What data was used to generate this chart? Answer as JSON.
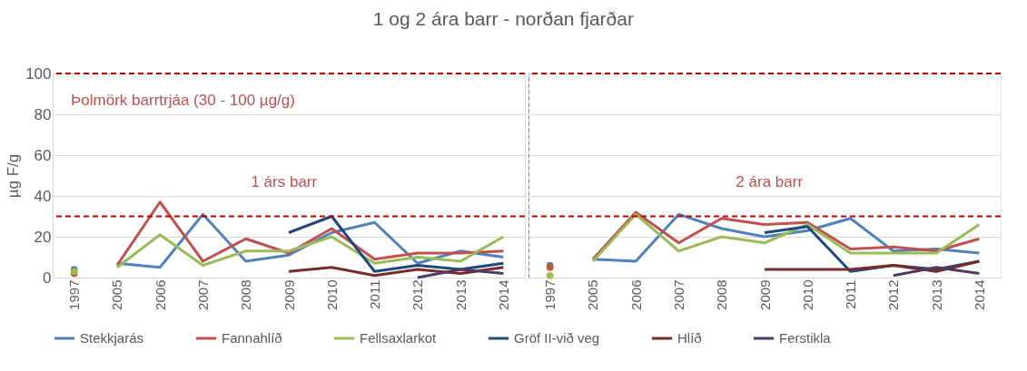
{
  "chart_data": [
    {
      "type": "line",
      "title": "1 og 2 ára barr - norðan fjarðar",
      "ylabel": "µg F/g",
      "categories": [
        "1997",
        "2005",
        "2006",
        "2007",
        "2008",
        "2009",
        "2010",
        "2011",
        "2012",
        "2013",
        "2014"
      ],
      "series": [
        {
          "name": "Stekkjarás",
          "color": "#4f81bd",
          "values": [
            null,
            7,
            5,
            31,
            8,
            11,
            22,
            27,
            7,
            13,
            10
          ]
        },
        {
          "name": "Fannahlíð",
          "color": "#c0504d",
          "values": [
            null,
            6,
            37,
            8,
            19,
            12,
            24,
            9,
            12,
            12,
            13
          ]
        },
        {
          "name": "Fellsaxlarkot",
          "color": "#9bbb59",
          "values": [
            null,
            5,
            21,
            6,
            13,
            13,
            20,
            7,
            10,
            8,
            20
          ]
        },
        {
          "name": "Gröf II-við veg",
          "color": "#1f497d",
          "values": [
            null,
            null,
            null,
            null,
            null,
            22,
            30,
            3,
            6,
            4,
            7
          ]
        },
        {
          "name": "Hlíð",
          "color": "#772c2a",
          "values": [
            null,
            null,
            null,
            null,
            null,
            3,
            5,
            1,
            4,
            2,
            5
          ]
        },
        {
          "name": "Ferstikla",
          "color": "#4f3b62",
          "values": [
            null,
            null,
            null,
            null,
            null,
            null,
            null,
            null,
            0,
            4,
            2
          ]
        },
        {
          "type": "scatter",
          "color": "#4f81bd",
          "values": [
            4,
            null,
            null,
            null,
            null,
            null,
            null,
            null,
            null,
            null,
            null
          ]
        },
        {
          "type": "scatter",
          "color": "#c0592b",
          "values": [
            2,
            null,
            null,
            null,
            null,
            null,
            null,
            null,
            null,
            null,
            null
          ]
        },
        {
          "type": "scatter",
          "color": "#9bbb59",
          "values": [
            3,
            null,
            null,
            null,
            null,
            null,
            null,
            null,
            null,
            null,
            null
          ]
        }
      ],
      "ylim": [
        0,
        100
      ],
      "yticks": [
        0,
        20,
        40,
        60,
        80,
        100
      ],
      "grid": "y",
      "legend": "bottom",
      "ref_lines": [
        {
          "axis": "y",
          "value": 30,
          "color": "#c00000",
          "line_style": "dashed"
        },
        {
          "axis": "y",
          "value": 100,
          "color": "#c00000",
          "line_style": "dashed"
        }
      ],
      "annotations": [
        "Þolmörk barrtrjáa (30 - 100 µg/g)",
        "1 árs barr"
      ]
    },
    {
      "type": "line",
      "categories": [
        "1997",
        "2005",
        "2006",
        "2007",
        "2008",
        "2009",
        "2010",
        "2011",
        "2012",
        "2013",
        "2014"
      ],
      "series": [
        {
          "name": "Stekkjarás",
          "color": "#4f81bd",
          "values": [
            null,
            9,
            8,
            31,
            24,
            20,
            23,
            29,
            13,
            14,
            12
          ]
        },
        {
          "name": "Fannahlíð",
          "color": "#c0504d",
          "values": [
            null,
            9,
            32,
            17,
            29,
            26,
            27,
            14,
            15,
            13,
            19
          ]
        },
        {
          "name": "Fellsaxlarkot",
          "color": "#9bbb59",
          "values": [
            null,
            8,
            31,
            13,
            20,
            17,
            26,
            12,
            12,
            12,
            26
          ]
        },
        {
          "name": "Gröf II-við veg",
          "color": "#1f497d",
          "values": [
            null,
            null,
            null,
            null,
            null,
            22,
            25,
            3,
            6,
            4,
            8
          ]
        },
        {
          "name": "Hlíð",
          "color": "#772c2a",
          "values": [
            null,
            null,
            null,
            null,
            null,
            4,
            4,
            4,
            6,
            3,
            8
          ]
        },
        {
          "name": "Ferstikla",
          "color": "#4f3b62",
          "values": [
            null,
            null,
            null,
            null,
            null,
            null,
            null,
            null,
            1,
            5,
            2
          ]
        },
        {
          "type": "scatter",
          "color": "#4f81bd",
          "values": [
            6,
            null,
            null,
            null,
            null,
            null,
            null,
            null,
            null,
            null,
            null
          ]
        },
        {
          "type": "scatter",
          "color": "#c0592b",
          "values": [
            5,
            null,
            null,
            null,
            null,
            null,
            null,
            null,
            null,
            null,
            null
          ]
        },
        {
          "type": "scatter",
          "color": "#9bbb59",
          "values": [
            1,
            null,
            null,
            null,
            null,
            null,
            null,
            null,
            null,
            null,
            null
          ]
        }
      ],
      "ylim": [
        0,
        100
      ],
      "yticks": [
        0,
        20,
        40,
        60,
        80,
        100
      ],
      "grid": "y",
      "tick_labels": "x",
      "ref_lines": [
        {
          "axis": "y",
          "value": 30,
          "color": "#c00000",
          "line_style": "dashed"
        },
        {
          "axis": "y",
          "value": 100,
          "color": "#c00000",
          "line_style": "dashed"
        }
      ],
      "annotations": [
        "2 ára barr"
      ]
    }
  ]
}
